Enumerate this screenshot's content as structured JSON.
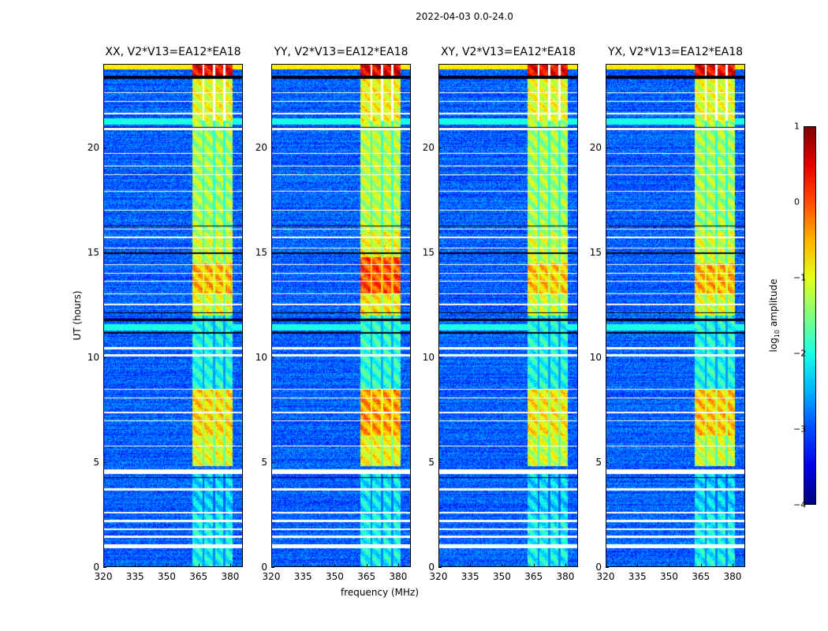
{
  "suptitle": "2022-04-03 0.0-24.0",
  "xlabel": "frequency (MHz)",
  "ylabel": "UT (hours)",
  "colorbar": {
    "label_prefix": "log",
    "label_sub": "10",
    "label_suffix": " amplitude",
    "ticks": [
      "1",
      "0",
      "−1",
      "−2",
      "−3",
      "−4"
    ],
    "range": [
      -4,
      1
    ]
  },
  "chart_data": {
    "type": "heatmap",
    "title": "2022-04-03 0.0-24.0",
    "xlabel": "frequency (MHz)",
    "ylabel": "UT (hours)",
    "xlim": [
      320,
      386
    ],
    "ylim": [
      0,
      24
    ],
    "xticks": [
      "320",
      "335",
      "350",
      "365",
      "380"
    ],
    "yticks": [
      "0",
      "5",
      "10",
      "15",
      "20"
    ],
    "colormap": "jet",
    "value_label": "log10 amplitude",
    "background_level": -2.9,
    "rfi_band_mhz": [
      362,
      381
    ],
    "rfi_subchannel_gaps_mhz": [
      367.3,
      372.3,
      377.3
    ],
    "flagged_hours_white": [
      [
        0.9,
        1.1
      ],
      [
        1.4,
        1.5
      ],
      [
        1.75,
        1.85
      ],
      [
        2.15,
        2.25
      ],
      [
        2.55,
        2.65
      ],
      [
        3.65,
        3.75
      ],
      [
        4.45,
        4.65
      ],
      [
        5.75,
        5.8
      ],
      [
        6.95,
        7.0
      ],
      [
        7.35,
        7.4
      ],
      [
        8.05,
        8.1
      ],
      [
        8.45,
        8.5
      ],
      [
        10.05,
        10.15
      ],
      [
        10.4,
        10.5
      ],
      [
        12.5,
        12.55
      ],
      [
        13.0,
        13.05
      ],
      [
        13.6,
        13.65
      ],
      [
        14.0,
        14.05
      ],
      [
        14.4,
        14.45
      ],
      [
        15.2,
        15.25
      ],
      [
        15.7,
        15.75
      ],
      [
        16.1,
        16.15
      ],
      [
        17.0,
        17.05
      ],
      [
        17.9,
        17.95
      ],
      [
        18.7,
        18.75
      ],
      [
        19.1,
        19.15
      ],
      [
        19.7,
        19.75
      ],
      [
        20.85,
        20.95
      ],
      [
        21.6,
        21.65
      ],
      [
        22.2,
        22.25
      ],
      [
        22.6,
        22.65
      ]
    ],
    "flagged_hours_black": [
      [
        4.25,
        4.3
      ],
      [
        11.15,
        11.2
      ],
      [
        11.75,
        11.85
      ],
      [
        12.1,
        12.15
      ],
      [
        14.95,
        15.0
      ],
      [
        16.25,
        16.3
      ],
      [
        20.95,
        21.0
      ],
      [
        23.3,
        23.45
      ]
    ],
    "panels": [
      {
        "title": "XX, V2*V13=EA12*EA18",
        "segments": [
          [
            0,
            2.5,
            -2.1
          ],
          [
            2.5,
            4.6,
            -2.3
          ],
          [
            4.8,
            6.3,
            -1.0
          ],
          [
            6.3,
            8.5,
            -0.7
          ],
          [
            8.5,
            12.0,
            -2.0
          ],
          [
            12.0,
            13.0,
            -1.0
          ],
          [
            13.0,
            14.5,
            -0.5
          ],
          [
            14.5,
            16.0,
            -1.1
          ],
          [
            16.0,
            21.3,
            -1.3
          ],
          [
            21.3,
            23.3,
            -1.0
          ],
          [
            23.4,
            24,
            0.4
          ]
        ]
      },
      {
        "title": "YY, V2*V13=EA12*EA18",
        "segments": [
          [
            0,
            2.5,
            -2.1
          ],
          [
            2.5,
            4.6,
            -2.2
          ],
          [
            4.8,
            6.3,
            -0.9
          ],
          [
            6.3,
            8.5,
            -0.4
          ],
          [
            8.5,
            12.0,
            -1.9
          ],
          [
            12.0,
            13.0,
            -0.8
          ],
          [
            13.0,
            14.8,
            0.0
          ],
          [
            14.8,
            16.0,
            -0.9
          ],
          [
            16.0,
            21.3,
            -1.2
          ],
          [
            21.3,
            23.3,
            -0.9
          ],
          [
            23.4,
            24,
            0.5
          ]
        ]
      },
      {
        "title": "XY, V2*V13=EA12*EA18",
        "segments": [
          [
            0,
            2.5,
            -2.1
          ],
          [
            2.5,
            4.6,
            -2.3
          ],
          [
            4.8,
            6.3,
            -1.1
          ],
          [
            6.3,
            8.5,
            -0.8
          ],
          [
            8.5,
            12.0,
            -2.0
          ],
          [
            12.0,
            13.0,
            -1.1
          ],
          [
            13.0,
            14.5,
            -0.6
          ],
          [
            14.5,
            16.0,
            -1.1
          ],
          [
            16.0,
            21.3,
            -1.3
          ],
          [
            21.3,
            23.3,
            -1.0
          ],
          [
            23.4,
            24,
            0.4
          ]
        ]
      },
      {
        "title": "YX, V2*V13=EA12*EA18",
        "segments": [
          [
            0,
            2.5,
            -2.1
          ],
          [
            2.5,
            4.6,
            -2.3
          ],
          [
            4.8,
            6.3,
            -1.1
          ],
          [
            6.3,
            8.5,
            -0.6
          ],
          [
            8.5,
            12.0,
            -2.0
          ],
          [
            12.0,
            13.0,
            -1.0
          ],
          [
            13.0,
            14.5,
            -0.5
          ],
          [
            14.5,
            16.0,
            -1.1
          ],
          [
            16.0,
            21.3,
            -1.3
          ],
          [
            21.3,
            23.3,
            -1.0
          ],
          [
            23.4,
            24,
            0.4
          ]
        ]
      }
    ]
  }
}
